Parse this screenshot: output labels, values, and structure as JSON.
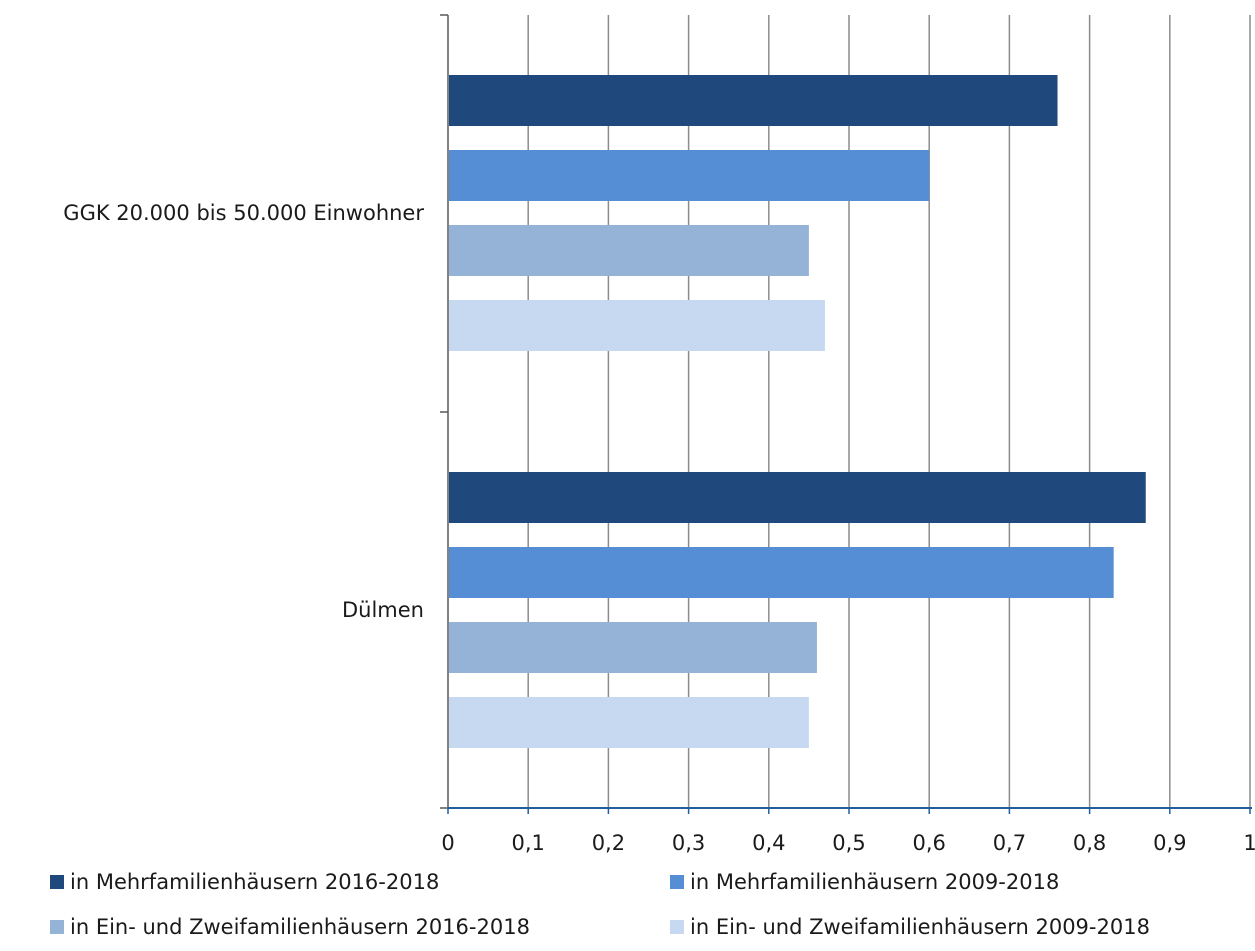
{
  "chart_data": {
    "type": "bar",
    "orientation": "horizontal",
    "categories": [
      "GGK 20.000 bis 50.000 Einwohner",
      "Dülmen"
    ],
    "series": [
      {
        "name": "in Mehrfamilienhäusern 2016-2018",
        "color": "#1f497d",
        "values": [
          0.76,
          0.87
        ]
      },
      {
        "name": "in Mehrfamilienhäusern 2009-2018",
        "color": "#558ed5",
        "values": [
          0.6,
          0.83
        ]
      },
      {
        "name": "in Ein- und Zweifamilienhäusern 2016-2018",
        "color": "#95b3d7",
        "values": [
          0.45,
          0.46
        ]
      },
      {
        "name": "in Ein- und Zweifamilienhäusern 2009-2018",
        "color": "#c6d9f1",
        "values": [
          0.47,
          0.45
        ]
      }
    ],
    "xlim": [
      0,
      1
    ],
    "x_ticks": [
      "0",
      "0,1",
      "0,2",
      "0,3",
      "0,4",
      "0,5",
      "0,6",
      "0,7",
      "0,8",
      "0,9",
      "1"
    ],
    "grid": true,
    "legend_position": "bottom",
    "title": "",
    "xlabel": "",
    "ylabel": ""
  }
}
